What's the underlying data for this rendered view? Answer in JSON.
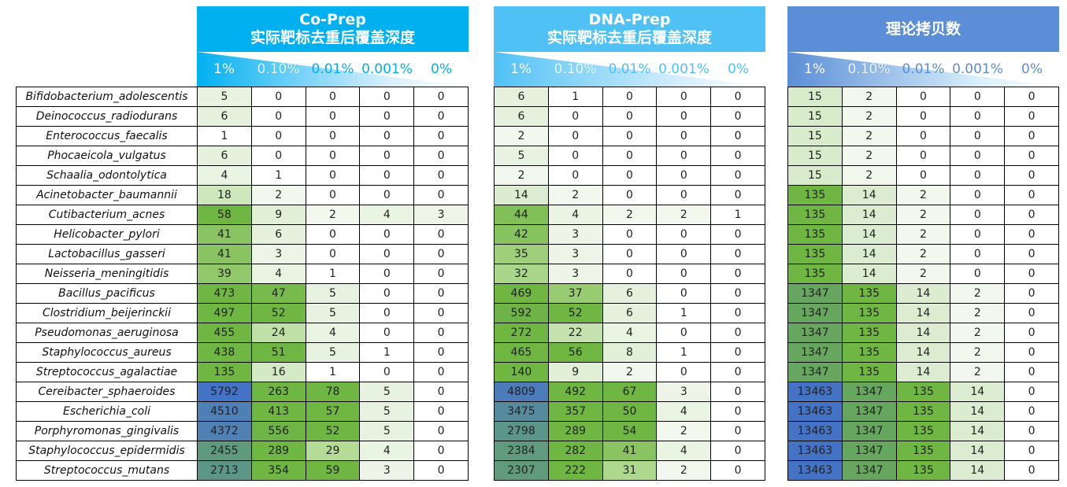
{
  "chart_data": {
    "type": "heatmap",
    "row_labels": [
      "Bifidobacterium_adolescentis",
      "Deinococcus_radiodurans",
      "Enterococcus_faecalis",
      "Phocaeicola_vulgatus",
      "Schaalia_odontolytica",
      "Acinetobacter_baumannii",
      "Cutibacterium_acnes",
      "Helicobacter_pylori",
      "Lactobacillus_gasseri",
      "Neisseria_meningitidis",
      "Bacillus_pacificus",
      "Clostridium_beijerinckii",
      "Pseudomonas_aeruginosa",
      "Staphylococcus_aureus",
      "Streptococcus_agalactiae",
      "Cereibacter_sphaeroides",
      "Escherichia_coli",
      "Porphyromonas_gingivalis",
      "Staphylococcus_epidermidis",
      "Streptococcus_mutans"
    ],
    "column_labels": [
      "1%",
      "0.10%",
      "0.01%",
      "0.001%",
      "0%"
    ],
    "tables": [
      {
        "title": "Co-Prep",
        "subtitle": "实际靶标去重后覆盖深度",
        "color": "#00b0f0",
        "values": [
          [
            5,
            0,
            0,
            0,
            0
          ],
          [
            6,
            0,
            0,
            0,
            0
          ],
          [
            1,
            0,
            0,
            0,
            0
          ],
          [
            6,
            0,
            0,
            0,
            0
          ],
          [
            4,
            1,
            0,
            0,
            0
          ],
          [
            18,
            2,
            0,
            0,
            0
          ],
          [
            58,
            9,
            2,
            4,
            3
          ],
          [
            41,
            6,
            0,
            0,
            0
          ],
          [
            41,
            3,
            0,
            0,
            0
          ],
          [
            39,
            4,
            1,
            0,
            0
          ],
          [
            473,
            47,
            5,
            0,
            0
          ],
          [
            497,
            52,
            5,
            0,
            0
          ],
          [
            455,
            24,
            4,
            0,
            0
          ],
          [
            438,
            51,
            5,
            1,
            0
          ],
          [
            135,
            16,
            1,
            0,
            0
          ],
          [
            5792,
            263,
            78,
            5,
            0
          ],
          [
            4510,
            413,
            57,
            5,
            0
          ],
          [
            4372,
            556,
            52,
            5,
            0
          ],
          [
            2455,
            289,
            29,
            4,
            0
          ],
          [
            2713,
            354,
            59,
            3,
            0
          ]
        ]
      },
      {
        "title": "DNA-Prep",
        "subtitle": "实际靶标去重后覆盖深度",
        "color": "#4fc1f5",
        "values": [
          [
            6,
            1,
            0,
            0,
            0
          ],
          [
            6,
            0,
            0,
            0,
            0
          ],
          [
            2,
            0,
            0,
            0,
            0
          ],
          [
            5,
            0,
            0,
            0,
            0
          ],
          [
            2,
            0,
            0,
            0,
            0
          ],
          [
            14,
            2,
            0,
            0,
            0
          ],
          [
            44,
            4,
            2,
            2,
            1
          ],
          [
            42,
            3,
            0,
            0,
            0
          ],
          [
            35,
            3,
            0,
            0,
            0
          ],
          [
            32,
            3,
            0,
            0,
            0
          ],
          [
            469,
            37,
            6,
            0,
            0
          ],
          [
            592,
            52,
            6,
            1,
            0
          ],
          [
            272,
            22,
            4,
            0,
            0
          ],
          [
            465,
            56,
            8,
            1,
            0
          ],
          [
            140,
            9,
            2,
            0,
            0
          ],
          [
            4809,
            492,
            67,
            3,
            0
          ],
          [
            3475,
            357,
            50,
            4,
            0
          ],
          [
            2798,
            289,
            54,
            2,
            0
          ],
          [
            2384,
            282,
            41,
            4,
            0
          ],
          [
            2307,
            222,
            31,
            2,
            0
          ]
        ]
      },
      {
        "title": "理论拷贝数",
        "subtitle": "",
        "color": "#5b8ed6",
        "values": [
          [
            15,
            2,
            0,
            0,
            0
          ],
          [
            15,
            2,
            0,
            0,
            0
          ],
          [
            15,
            2,
            0,
            0,
            0
          ],
          [
            15,
            2,
            0,
            0,
            0
          ],
          [
            15,
            2,
            0,
            0,
            0
          ],
          [
            135,
            14,
            2,
            0,
            0
          ],
          [
            135,
            14,
            2,
            0,
            0
          ],
          [
            135,
            14,
            2,
            0,
            0
          ],
          [
            135,
            14,
            2,
            0,
            0
          ],
          [
            135,
            14,
            2,
            0,
            0
          ],
          [
            1347,
            135,
            14,
            2,
            0
          ],
          [
            1347,
            135,
            14,
            2,
            0
          ],
          [
            1347,
            135,
            14,
            2,
            0
          ],
          [
            1347,
            135,
            14,
            2,
            0
          ],
          [
            1347,
            135,
            14,
            2,
            0
          ],
          [
            13463,
            1347,
            135,
            14,
            0
          ],
          [
            13463,
            1347,
            135,
            14,
            0
          ],
          [
            13463,
            1347,
            135,
            14,
            0
          ],
          [
            13463,
            1347,
            135,
            14,
            0
          ],
          [
            13463,
            1347,
            135,
            14,
            0
          ]
        ]
      }
    ],
    "color_scale": {
      "low": "#ffffff",
      "mid": "#70b643",
      "high": "#4472c4"
    }
  }
}
